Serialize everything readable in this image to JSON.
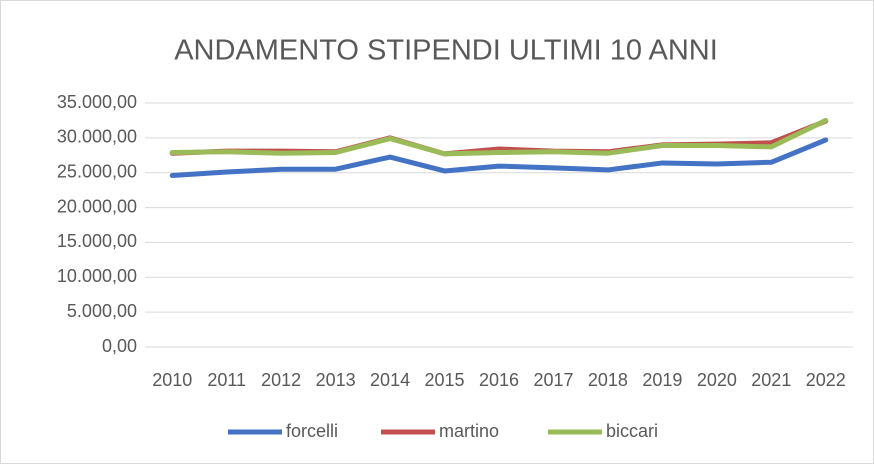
{
  "chart_data": {
    "type": "line",
    "title": "ANDAMENTO STIPENDI ULTIMI 10 ANNI",
    "categories": [
      "2010",
      "2011",
      "2012",
      "2013",
      "2014",
      "2015",
      "2016",
      "2017",
      "2018",
      "2019",
      "2020",
      "2021",
      "2022"
    ],
    "series": [
      {
        "name": "forcelli",
        "color": "#4472c4",
        "values": [
          24600,
          25100,
          25500,
          25500,
          27250,
          25250,
          25950,
          25700,
          25400,
          26400,
          26250,
          26500,
          29700
        ]
      },
      {
        "name": "martino",
        "color": "#c0504d",
        "values": [
          27800,
          28100,
          28100,
          28000,
          30000,
          27700,
          28400,
          28100,
          28000,
          29000,
          29100,
          29300,
          32400
        ]
      },
      {
        "name": "biccari",
        "color": "#9bbb59",
        "values": [
          27900,
          28000,
          27800,
          27900,
          29900,
          27700,
          27900,
          28000,
          27800,
          28900,
          28900,
          28700,
          32500
        ]
      }
    ],
    "ylim": [
      0,
      35000
    ],
    "yticks": [
      {
        "value": 0,
        "label": "0,00"
      },
      {
        "value": 5000,
        "label": "5.000,00"
      },
      {
        "value": 10000,
        "label": "10.000,00"
      },
      {
        "value": 15000,
        "label": "15.000,00"
      },
      {
        "value": 20000,
        "label": "20.000,00"
      },
      {
        "value": 25000,
        "label": "25.000,00"
      },
      {
        "value": 30000,
        "label": "30.000,00"
      },
      {
        "value": 35000,
        "label": "35.000,00"
      }
    ],
    "grid": true,
    "legend": "bottom"
  }
}
